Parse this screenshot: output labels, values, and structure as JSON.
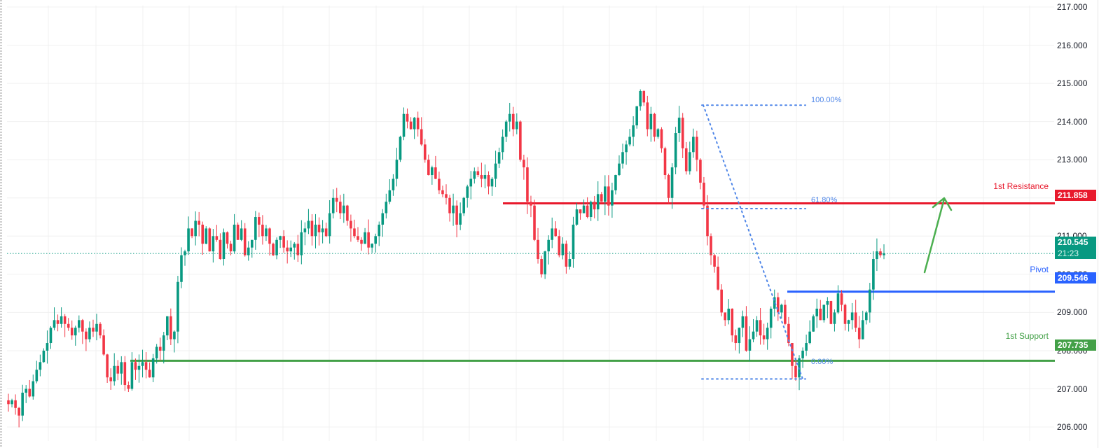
{
  "chart_data": {
    "type": "candlestick",
    "title": "",
    "y_axis": {
      "ticks": [
        "217.000",
        "216.000",
        "215.000",
        "214.000",
        "213.000",
        "212.000",
        "211.000",
        "210.000",
        "209.000",
        "208.000",
        "207.000",
        "206.000"
      ],
      "range": [
        205.8,
        217.2
      ]
    },
    "current_price": {
      "value": "210.545",
      "countdown": "21:23",
      "color": "#089981"
    },
    "levels": [
      {
        "name": "1st Resistance",
        "value": "211.858",
        "color": "#e8192c"
      },
      {
        "name": "Pivot",
        "value": "209.546",
        "color": "#2962ff"
      },
      {
        "name": "1st Support",
        "value": "207.735",
        "color": "#43a047"
      }
    ],
    "fibonacci": [
      {
        "label": "100.00%",
        "price": 214.43
      },
      {
        "label": "61.80%",
        "price": 211.72
      },
      {
        "label": "0.00%",
        "price": 207.26
      }
    ],
    "closes": [
      206.6,
      206.7,
      206.5,
      206.3,
      206.9,
      207.0,
      206.8,
      207.2,
      207.5,
      207.7,
      208.0,
      208.2,
      208.6,
      208.8,
      208.7,
      208.9,
      208.7,
      208.6,
      208.4,
      208.6,
      208.8,
      208.5,
      208.3,
      208.6,
      208.5,
      208.7,
      208.4,
      207.9,
      207.3,
      207.2,
      207.6,
      207.4,
      207.7,
      207.1,
      207.0,
      207.7,
      207.5,
      207.6,
      207.7,
      207.5,
      207.3,
      207.8,
      208.1,
      208.0,
      208.4,
      208.9,
      208.3,
      208.5,
      209.8,
      210.5,
      210.6,
      211.2,
      211.0,
      211.4,
      211.3,
      210.8,
      211.2,
      210.6,
      211.0,
      210.9,
      210.4,
      211.1,
      210.8,
      210.6,
      211.3,
      210.9,
      211.2,
      210.5,
      210.7,
      210.9,
      211.5,
      211.3,
      211.0,
      211.2,
      210.8,
      210.5,
      210.9,
      211.0,
      210.7,
      210.6,
      210.7,
      210.8,
      210.5,
      211.1,
      211.2,
      211.4,
      211.0,
      211.3,
      211.1,
      211.2,
      211.0,
      211.6,
      212.0,
      211.9,
      211.6,
      211.8,
      211.4,
      211.2,
      211.0,
      210.9,
      210.8,
      211.1,
      210.7,
      210.8,
      211.0,
      211.3,
      211.6,
      211.9,
      212.2,
      212.5,
      213.0,
      213.6,
      214.2,
      214.0,
      213.8,
      214.1,
      213.8,
      213.4,
      213.0,
      212.6,
      212.8,
      212.5,
      212.2,
      212.1,
      212.0,
      211.6,
      211.8,
      211.3,
      211.6,
      212.0,
      212.3,
      212.5,
      212.7,
      212.6,
      212.5,
      212.6,
      212.3,
      212.5,
      212.9,
      213.2,
      213.6,
      214.0,
      214.2,
      213.8,
      214.0,
      213.0,
      212.8,
      211.9,
      211.8,
      210.9,
      210.4,
      210.0,
      210.6,
      210.9,
      211.2,
      211.0,
      210.5,
      210.8,
      210.2,
      210.4,
      211.3,
      211.7,
      211.6,
      211.8,
      211.5,
      211.9,
      211.7,
      212.1,
      211.9,
      212.3,
      211.8,
      212.2,
      212.6,
      212.9,
      213.2,
      213.4,
      213.6,
      213.9,
      214.4,
      214.8,
      214.5,
      213.8,
      214.2,
      213.6,
      213.8,
      213.3,
      212.6,
      212.0,
      212.8,
      213.7,
      214.1,
      213.3,
      212.7,
      213.2,
      213.6,
      213.0,
      212.4,
      211.8,
      211.0,
      210.5,
      210.2,
      209.6,
      209.0,
      208.8,
      209.1,
      208.4,
      208.2,
      208.6,
      208.9,
      208.0,
      208.3,
      208.5,
      208.8,
      208.4,
      208.3,
      208.6,
      209.1,
      209.4,
      209.0,
      209.2,
      208.7,
      208.2,
      207.6,
      207.3,
      207.8,
      208.0,
      208.2,
      208.5,
      208.9,
      209.1,
      208.8,
      209.2,
      209.3,
      208.7,
      209.0,
      209.5,
      209.2,
      208.7,
      208.8,
      209.0,
      208.6,
      208.3,
      208.8,
      209.0,
      209.6,
      210.4,
      210.6,
      210.5,
      210.55
    ]
  },
  "axis_tag_levels": {
    "resistance_tag": "211.858",
    "pivot_tag": "209.546",
    "support_tag": "207.735",
    "current_tag": "210.545",
    "countdown": "21:23"
  }
}
